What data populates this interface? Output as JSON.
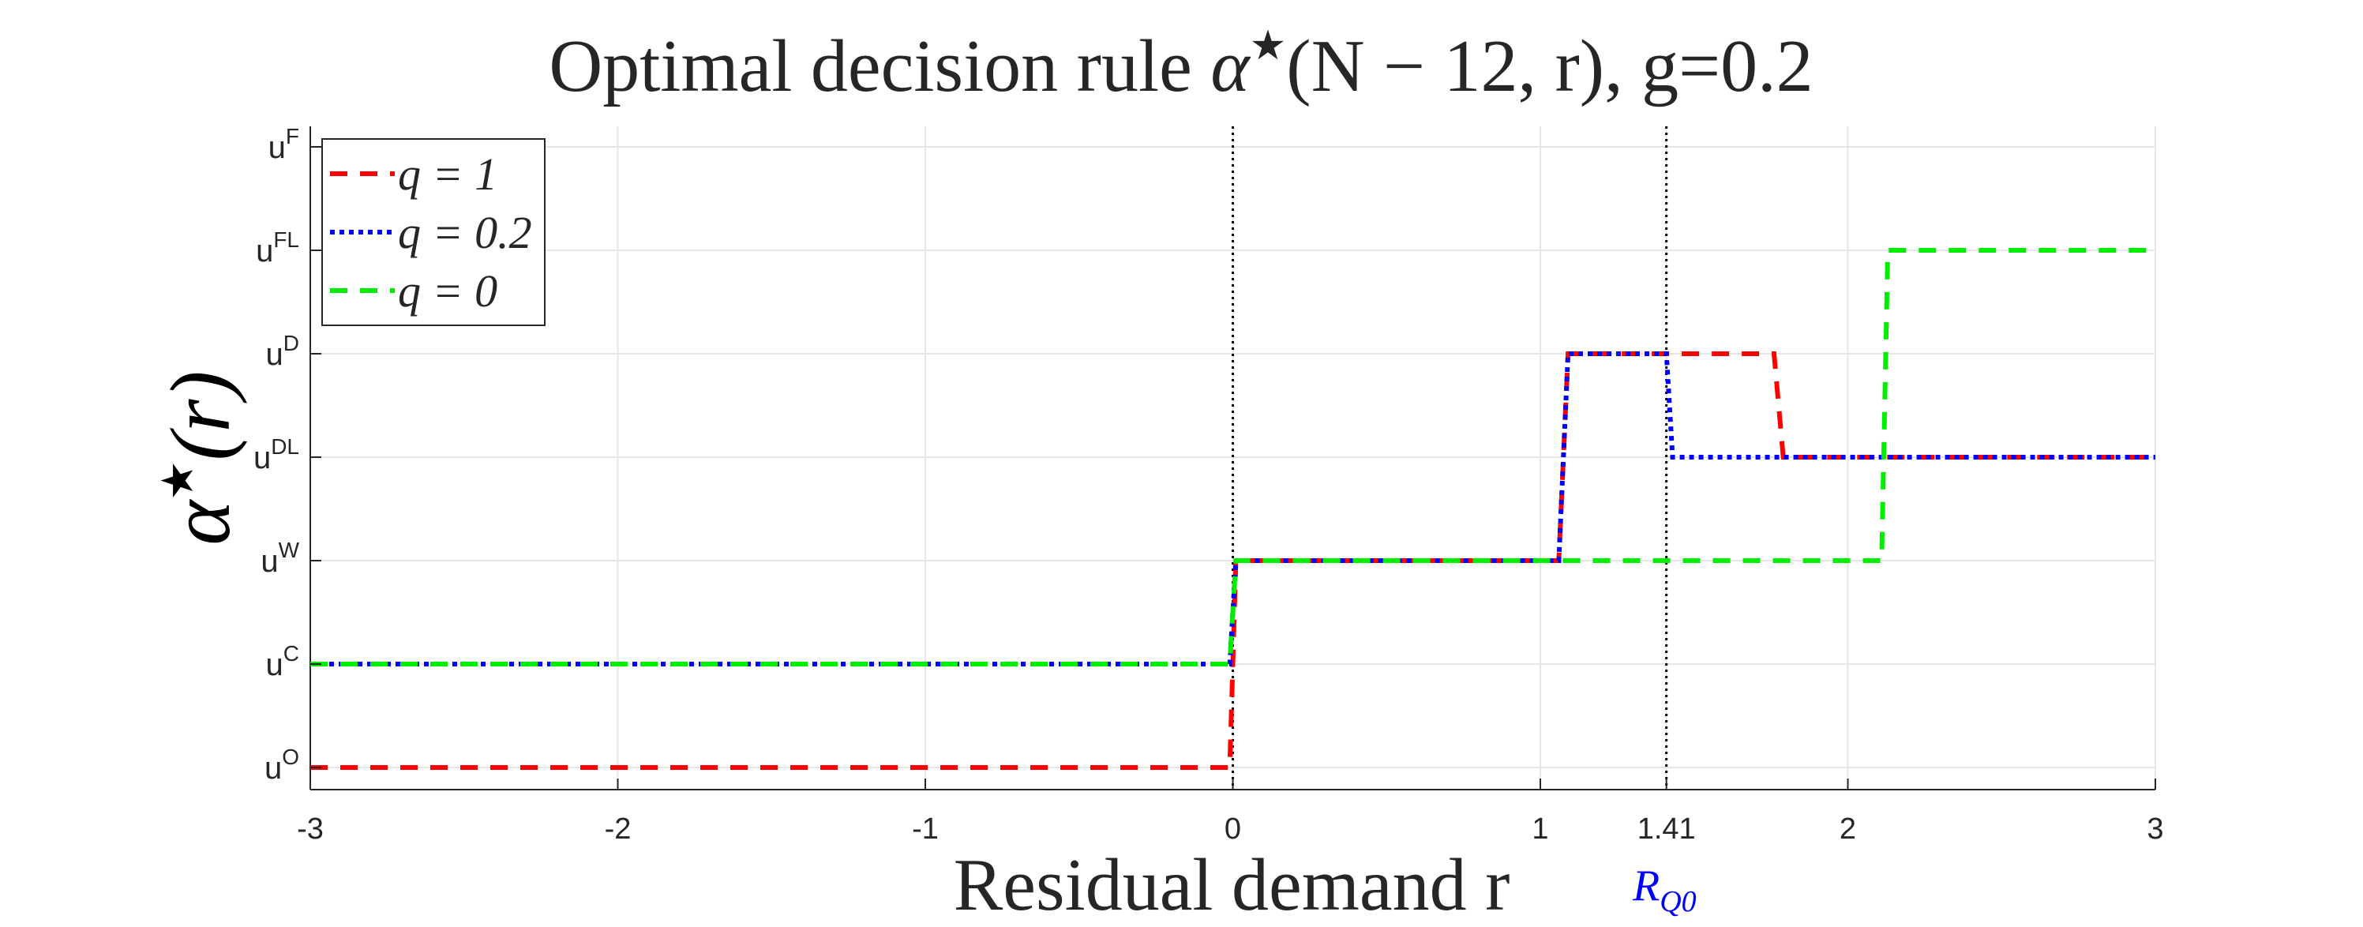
{
  "chart_data": {
    "type": "line",
    "title_prefix": "Optimal decision rule ",
    "title_alpha": "α",
    "title_star": "★",
    "title_args": "(N − 12, r),  g=0.2",
    "ylabel_alpha": "α",
    "ylabel_star": "★",
    "ylabel_arg": "(r)",
    "xlabel": "Residual demand  r",
    "xlim": [
      -3,
      3
    ],
    "x_ticks": [
      {
        "value": -3,
        "label": "-3"
      },
      {
        "value": -2,
        "label": "-2"
      },
      {
        "value": -1,
        "label": "-1"
      },
      {
        "value": 0,
        "label": "0"
      },
      {
        "value": 1,
        "label": "1"
      },
      {
        "value": 1.41,
        "label": "1.41"
      },
      {
        "value": 2,
        "label": "2"
      },
      {
        "value": 3,
        "label": "3"
      }
    ],
    "y_levels": [
      {
        "base": "u",
        "sup": "O"
      },
      {
        "base": "u",
        "sup": "C"
      },
      {
        "base": "u",
        "sup": "W"
      },
      {
        "base": "u",
        "sup": "DL"
      },
      {
        "base": "u",
        "sup": "D"
      },
      {
        "base": "u",
        "sup": "FL"
      },
      {
        "base": "u",
        "sup": "F"
      }
    ],
    "grid": true,
    "vlines": [
      0,
      1.41
    ],
    "vline_annotation": {
      "x": 1.41,
      "base": "R",
      "sub": "Q0",
      "color": "#0000ff"
    },
    "legend_position": "top-left",
    "series": [
      {
        "name": "q = 1",
        "color": "#ff0000",
        "style": "dashed",
        "points": [
          [
            -3,
            0
          ],
          [
            -0.01,
            0
          ],
          [
            0.01,
            2
          ],
          [
            1.06,
            2
          ],
          [
            1.09,
            4
          ],
          [
            1.76,
            4
          ],
          [
            1.79,
            3
          ],
          [
            3,
            3
          ]
        ]
      },
      {
        "name": "q = 0.2",
        "color": "#0000ff",
        "style": "dotted",
        "points": [
          [
            -3,
            1
          ],
          [
            -0.01,
            1
          ],
          [
            0.01,
            2
          ],
          [
            1.06,
            2
          ],
          [
            1.09,
            4
          ],
          [
            1.41,
            4
          ],
          [
            1.43,
            3
          ],
          [
            3,
            3
          ]
        ]
      },
      {
        "name": "q = 0",
        "color": "#00ee00",
        "style": "dashed",
        "points": [
          [
            -3,
            1
          ],
          [
            -0.01,
            1
          ],
          [
            0.01,
            2
          ],
          [
            2.11,
            2
          ],
          [
            2.13,
            5
          ],
          [
            3,
            5
          ]
        ]
      }
    ]
  }
}
